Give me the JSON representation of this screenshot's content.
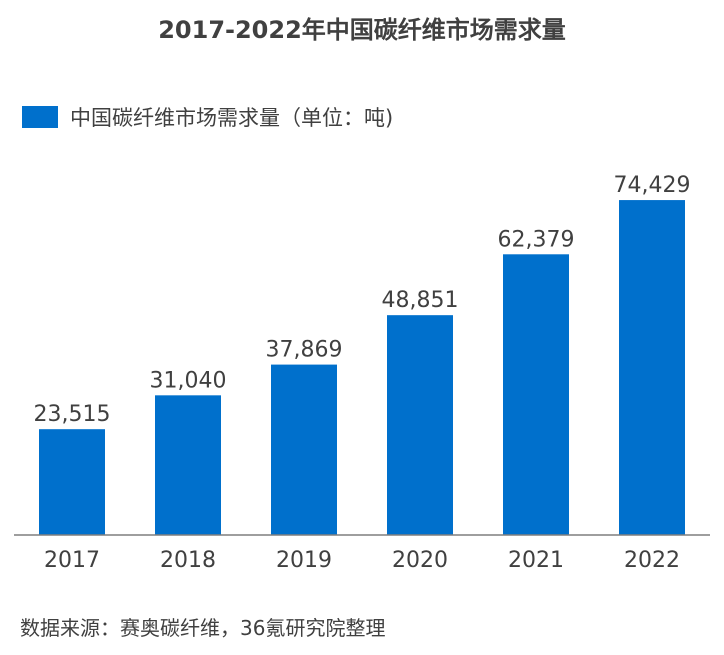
{
  "chart_data": {
    "type": "bar",
    "title": "2017-2022年中国碳纤维市场需求量",
    "categories": [
      "2017",
      "2018",
      "2019",
      "2020",
      "2021",
      "2022"
    ],
    "series": [
      {
        "name": "中国碳纤维市场需求量（单位：吨)",
        "values": [
          23515,
          31040,
          37869,
          48851,
          62379,
          74429
        ]
      }
    ],
    "value_labels": [
      "23,515",
      "31,040",
      "37,869",
      "48,851",
      "62,379",
      "74,429"
    ],
    "xlabel": "",
    "ylabel": "",
    "ylim": [
      0,
      80000
    ],
    "grid": false,
    "legend_position": "top-left",
    "bar_color": "#0070CC",
    "axis_color": "#7F7F7F"
  },
  "source": "数据来源：赛奥碳纤维，36氪研究院整理"
}
